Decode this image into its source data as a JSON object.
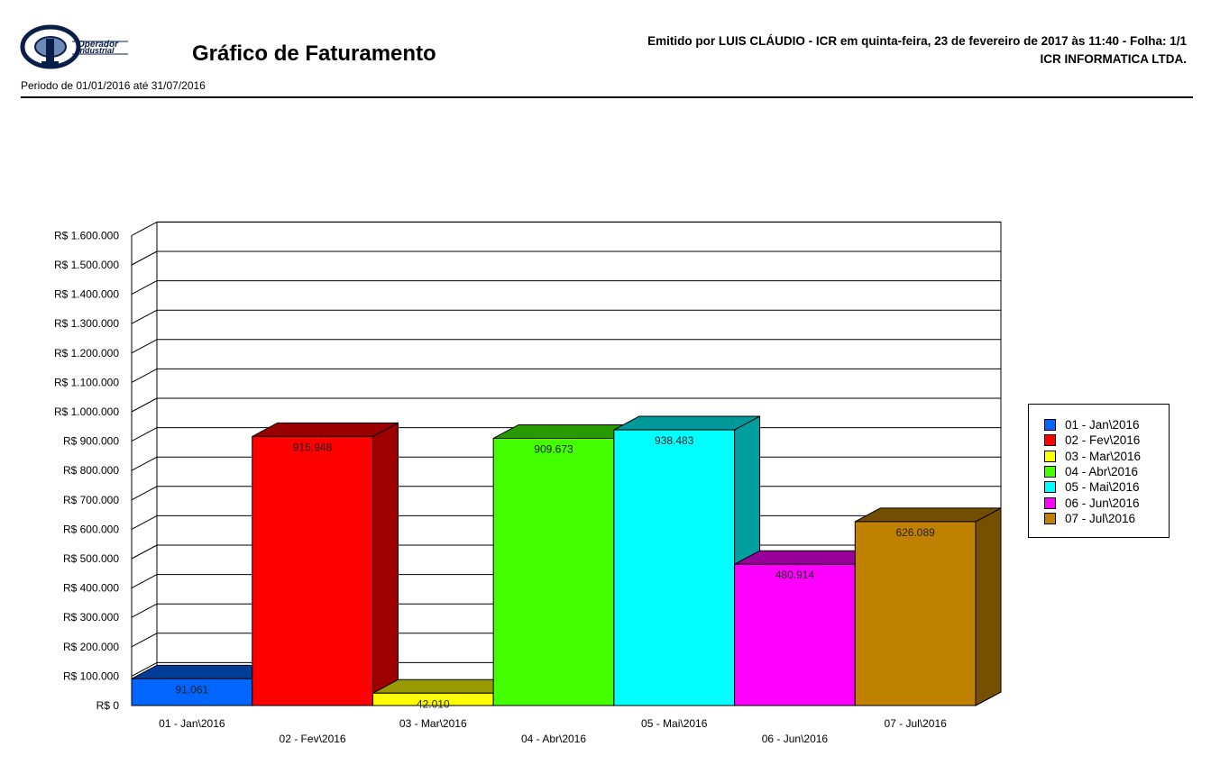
{
  "header": {
    "logo_text": "Operador Industrial",
    "title": "Gráfico de Faturamento",
    "emitted": "Emitido por LUIS CLÁUDIO - ICR em quinta-feira, 23 de fevereiro de 2017 às 11:40 - Folha: 1/1",
    "company": "ICR INFORMATICA LTDA.",
    "period": "Periodo de 01/01/2016 até 31/07/2016"
  },
  "chart_data": {
    "type": "bar",
    "title": "",
    "xlabel": "",
    "ylabel": "",
    "ylim": [
      0,
      1600000
    ],
    "y_ticks": [
      0,
      100000,
      200000,
      300000,
      400000,
      500000,
      600000,
      700000,
      800000,
      900000,
      1000000,
      1100000,
      1200000,
      1300000,
      1400000,
      1500000,
      1600000
    ],
    "y_tick_labels": [
      "R$ 0",
      "R$ 100.000",
      "R$ 200.000",
      "R$ 300.000",
      "R$ 400.000",
      "R$ 500.000",
      "R$ 600.000",
      "R$ 700.000",
      "R$ 800.000",
      "R$ 900.000",
      "R$ 1.000.000",
      "R$ 1.100.000",
      "R$ 1.200.000",
      "R$ 1.300.000",
      "R$ 1.400.000",
      "R$ 1.500.000",
      "R$ 1.600.000"
    ],
    "categories": [
      "01 - Jan\\2016",
      "02 - Fev\\2016",
      "03 - Mar\\2016",
      "04 - Abr\\2016",
      "05 - Mai\\2016",
      "06 - Jun\\2016",
      "07 - Jul\\2016"
    ],
    "values": [
      91061,
      915948,
      42010,
      909673,
      938483,
      480914,
      626089
    ],
    "value_labels": [
      "91.061",
      "915.948",
      "42.010",
      "909.673",
      "938.483",
      "480.914",
      "626.089"
    ],
    "colors": [
      "#0066ff",
      "#ff0000",
      "#ffff00",
      "#44ff00",
      "#00ffff",
      "#ff00ff",
      "#c08000"
    ],
    "grid": true,
    "three_d": true,
    "legend_position": "right"
  }
}
